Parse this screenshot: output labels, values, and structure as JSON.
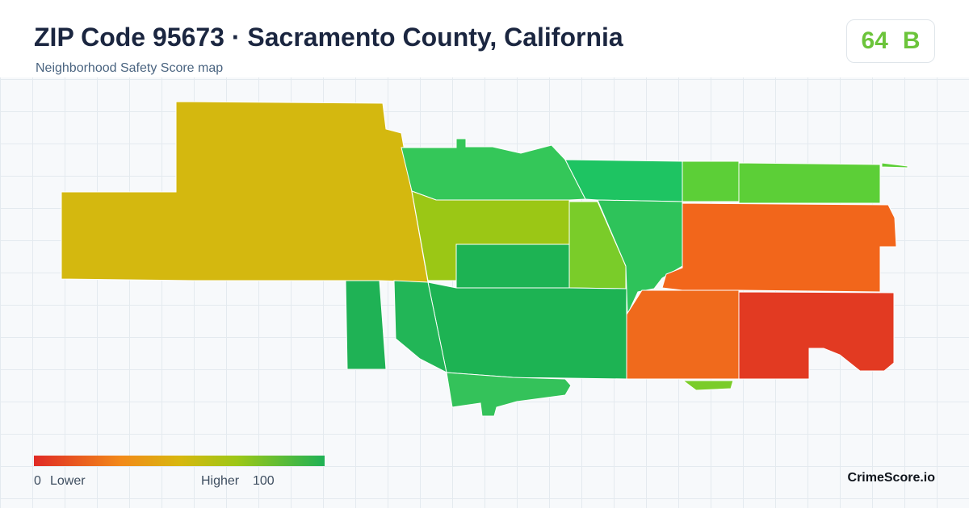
{
  "header": {
    "title": "ZIP Code 95673 · Sacramento County, California",
    "subtitle": "Neighborhood Safety Score map",
    "score": 64,
    "grade": "B"
  },
  "legend": {
    "min": 0,
    "min_label": "Lower",
    "max_label": "Higher",
    "max": 100
  },
  "brand": "CrimeScore.io"
}
